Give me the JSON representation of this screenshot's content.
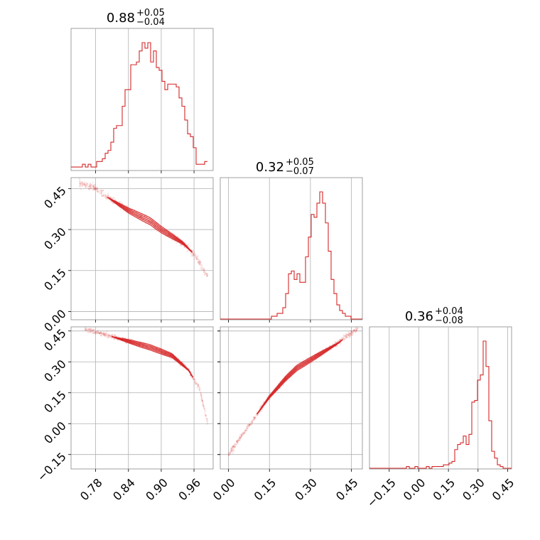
{
  "chart_data": {
    "type": "corner",
    "color": "#d62728",
    "params": [
      {
        "title": {
          "median": "0.88",
          "plus": "+0.05",
          "minus": "−0.04"
        },
        "range": [
          0.735,
          0.995
        ],
        "ticks": [
          0.78,
          0.84,
          0.9,
          0.96
        ],
        "tick_labels": [
          "0.78",
          "0.84",
          "0.90",
          "0.96"
        ],
        "hist": {
          "edges_start": 0.735,
          "bin_width": 0.0052,
          "counts": [
            1,
            1,
            1,
            1,
            2,
            1,
            2,
            1,
            1,
            3,
            3,
            4,
            6,
            7,
            10,
            15,
            16,
            16,
            23,
            29,
            29,
            38,
            38,
            39,
            43,
            46,
            44,
            46,
            39,
            43,
            37,
            36,
            32,
            29,
            31,
            31,
            31,
            30,
            26,
            23,
            18,
            13,
            12,
            8,
            2,
            2,
            2,
            3
          ]
        }
      },
      {
        "title": {
          "median": "0.32",
          "plus": "+0.05",
          "minus": "−0.07"
        },
        "range": [
          -0.03,
          0.49
        ],
        "ticks": [
          0.0,
          0.15,
          0.3,
          0.45
        ],
        "tick_labels": [
          "0.00",
          "0.15",
          "0.30",
          "0.45"
        ],
        "hist": {
          "edges_start": -0.03,
          "bin_width": 0.0104,
          "counts": [
            0,
            0,
            0,
            0,
            0,
            0,
            0,
            0,
            0,
            0,
            0,
            0,
            0,
            0,
            0,
            0,
            0,
            0,
            1,
            1,
            2,
            2,
            4,
            9,
            16,
            17,
            14,
            16,
            13,
            13,
            22,
            29,
            37,
            36,
            41,
            45,
            41,
            34,
            24,
            14,
            9,
            5,
            3,
            2,
            1,
            1,
            0,
            0,
            0,
            0
          ]
        }
      },
      {
        "title": {
          "median": "0.36",
          "plus": "+0.04",
          "minus": "−0.08"
        },
        "range": [
          -0.25,
          0.47
        ],
        "ticks": [
          -0.15,
          0.0,
          0.15,
          0.3,
          0.45
        ],
        "tick_labels": [
          "−0.15",
          "0.00",
          "0.15",
          "0.30",
          "0.45"
        ],
        "hist": {
          "edges_start": -0.25,
          "bin_width": 0.0144,
          "counts": [
            0,
            0,
            0,
            0,
            0,
            0,
            0,
            0,
            0,
            0,
            0,
            0,
            0,
            1,
            0,
            0,
            1,
            0,
            0,
            0,
            1,
            0,
            1,
            1,
            1,
            1,
            2,
            2,
            3,
            4,
            11,
            14,
            15,
            19,
            14,
            20,
            39,
            40,
            52,
            55,
            75,
            60,
            28,
            10,
            6,
            2,
            1,
            0,
            0,
            0
          ]
        }
      }
    ],
    "scatter": {
      "p21": {
        "x_anchor": [
          0.75,
          0.78,
          0.8,
          0.84,
          0.88,
          0.9,
          0.94,
          0.96,
          0.985
        ],
        "y_anchor": [
          0.47,
          0.45,
          0.42,
          0.37,
          0.33,
          0.3,
          0.25,
          0.21,
          0.13
        ]
      },
      "p31": {
        "x_anchor": [
          0.76,
          0.8,
          0.84,
          0.88,
          0.92,
          0.95,
          0.97,
          0.985
        ],
        "y_anchor": [
          0.46,
          0.43,
          0.4,
          0.37,
          0.33,
          0.26,
          0.17,
          0.0
        ]
      },
      "p32": {
        "x_anchor": [
          0.0,
          0.08,
          0.15,
          0.21,
          0.25,
          0.3,
          0.35,
          0.4,
          0.45,
          0.475
        ],
        "y_anchor": [
          -0.15,
          0.0,
          0.13,
          0.22,
          0.27,
          0.31,
          0.35,
          0.39,
          0.44,
          0.46
        ]
      }
    }
  }
}
